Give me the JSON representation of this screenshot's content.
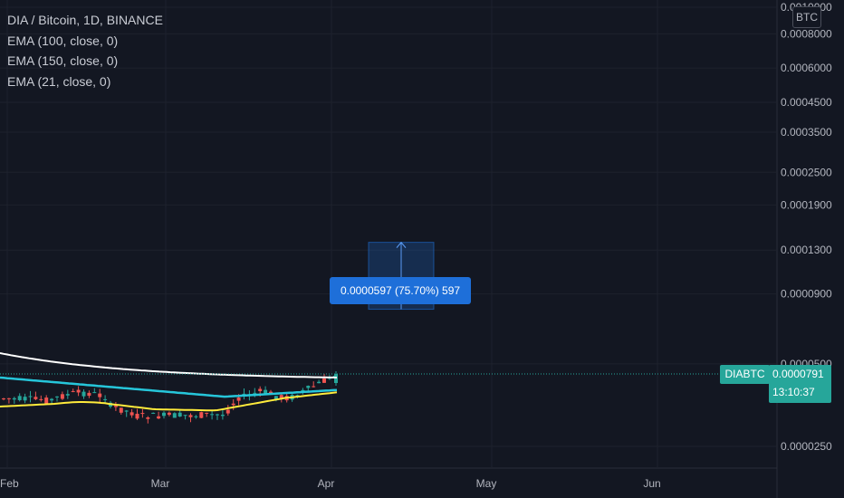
{
  "legend": {
    "title": "DIA / Bitcoin, 1D, BINANCE",
    "indicators": [
      "EMA (100, close, 0)",
      "EMA (150, close, 0)",
      "EMA (21, close, 0)"
    ]
  },
  "currency_button": "BTC",
  "measure": {
    "label": "0.0000597 (75.70%) 597"
  },
  "last_price": {
    "symbol": "DIABTC",
    "value": "0.0000791",
    "countdown": "13:10:37"
  },
  "colors": {
    "background": "#131722",
    "up": "#26a69a",
    "down": "#ef5350",
    "ema100": "#ffffff",
    "ema150": "#26c6da",
    "ema21": "#ffeb3b",
    "measure": "#1e6fd9"
  },
  "chart_data": {
    "type": "candlestick",
    "symbol": "DIA / Bitcoin",
    "interval": "1D",
    "exchange": "BINANCE",
    "y_scale": "log",
    "y_axis_labels": [
      "0.0010000",
      "0.0008000",
      "0.0006000",
      "0.0004500",
      "0.0003500",
      "0.0002500",
      "0.0001900",
      "0.0001300",
      "0.0000900",
      "0.0000500",
      "0.0000250"
    ],
    "x_axis_labels": [
      "Feb",
      "Mar",
      "Apr",
      "May",
      "Jun"
    ],
    "last_close": 7.91e-05,
    "measure": {
      "from": 7.91e-05,
      "to": 0.0001388,
      "change": 5.97e-05,
      "percent": 75.7,
      "ticks": 597
    },
    "series": [
      {
        "name": "EMA (100, close, 0)",
        "values": [
          [
            8.6e-05,
            8.56e-05,
            8.52e-05,
            8.48e-05,
            8.44e-05,
            8.4e-05,
            8.36e-05,
            8.32e-05,
            8.28e-05,
            8.24e-05,
            8.2e-05,
            8.16e-05,
            8.12e-05,
            8.08e-05,
            8.05e-05,
            8.02e-05,
            7.99e-05,
            7.96e-05,
            7.94e-05,
            7.92e-05,
            7.9e-05
          ],
          [
            0,
            0.05,
            0.1,
            0.15,
            0.2,
            0.25,
            0.3,
            0.35,
            0.4,
            0.45,
            0.5,
            0.55,
            0.6,
            0.65,
            0.7,
            0.75,
            0.8,
            0.85,
            0.9,
            0.95,
            1.0
          ]
        ]
      },
      {
        "name": "EMA (150, close, 0)",
        "values": []
      },
      {
        "name": "EMA (21, close, 0)",
        "values": []
      }
    ]
  }
}
